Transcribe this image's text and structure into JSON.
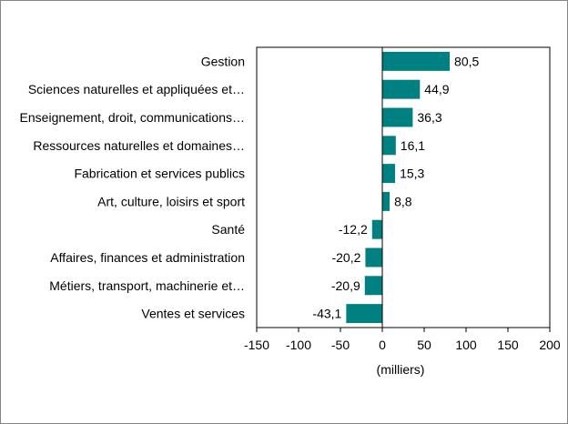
{
  "chart_data": {
    "type": "bar",
    "orientation": "horizontal",
    "categories": [
      "Gestion",
      "Sciences naturelles et appliquées et…",
      "Enseignement, droit, communications…",
      "Ressources naturelles et domaines…",
      "Fabrication et services publics",
      "Art, culture, loisirs et sport",
      "Santé",
      "Affaires, finances et administration",
      "Métiers, transport, machinerie et…",
      "Ventes et services"
    ],
    "values": [
      80.5,
      44.9,
      36.3,
      16.1,
      15.3,
      8.8,
      -12.2,
      -20.2,
      -20.9,
      -43.1
    ],
    "value_labels": [
      "80,5",
      "44,9",
      "36,3",
      "16,1",
      "15,3",
      "8,8",
      "-12,2",
      "-20,2",
      "-20,9",
      "-43,1"
    ],
    "xlabel": "(milliers)",
    "xlim": [
      -150,
      200
    ],
    "xticks": [
      -150,
      -100,
      -50,
      0,
      50,
      100,
      150,
      200
    ],
    "xtick_labels": [
      "-150",
      "-100",
      "-50",
      "0",
      "50",
      "100",
      "150",
      "200"
    ],
    "bar_color": "#008080",
    "grid": false,
    "legend": "none"
  }
}
